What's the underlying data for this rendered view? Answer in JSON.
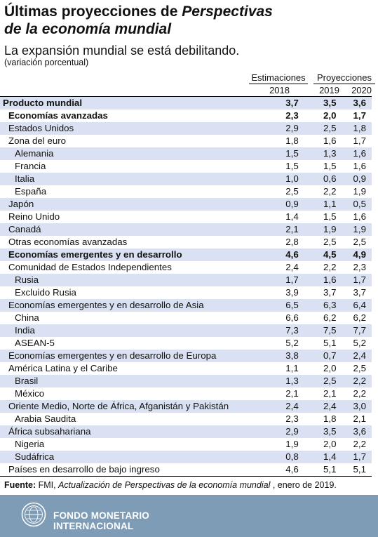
{
  "title": {
    "line1": "Últimas proyecciones de ",
    "line1_em": "Perspectivas",
    "line2_em": "de la economía mundial"
  },
  "subtitle": "La expansión mundial se está debilitando.",
  "unit": "(variación porcentual)",
  "headers": {
    "estimaciones": "Estimaciones",
    "proyecciones": "Proyecciones",
    "y2018": "2018",
    "y2019": "2019",
    "y2020": "2020"
  },
  "rows": [
    {
      "label": "Producto mundial",
      "v2018": "3,7",
      "v2019": "3,5",
      "v2020": "3,6"
    },
    {
      "label": "Economías avanzadas",
      "v2018": "2,3",
      "v2019": "2,0",
      "v2020": "1,7"
    },
    {
      "label": "Estados Unidos",
      "v2018": "2,9",
      "v2019": "2,5",
      "v2020": "1,8"
    },
    {
      "label": "Zona del euro",
      "v2018": "1,8",
      "v2019": "1,6",
      "v2020": "1,7"
    },
    {
      "label": "Alemania",
      "v2018": "1,5",
      "v2019": "1,3",
      "v2020": "1,6"
    },
    {
      "label": "Francia",
      "v2018": "1,5",
      "v2019": "1,5",
      "v2020": "1,6"
    },
    {
      "label": "Italia",
      "v2018": "1,0",
      "v2019": "0,6",
      "v2020": "0,9"
    },
    {
      "label": "España",
      "v2018": "2,5",
      "v2019": "2,2",
      "v2020": "1,9"
    },
    {
      "label": "Japón",
      "v2018": "0,9",
      "v2019": "1,1",
      "v2020": "0,5"
    },
    {
      "label": "Reino Unido",
      "v2018": "1,4",
      "v2019": "1,5",
      "v2020": "1,6"
    },
    {
      "label": "Canadá",
      "v2018": "2,1",
      "v2019": "1,9",
      "v2020": "1,9"
    },
    {
      "label": "Otras economías avanzadas",
      "v2018": "2,8",
      "v2019": "2,5",
      "v2020": "2,5"
    },
    {
      "label": "Economías emergentes y en desarrollo",
      "v2018": "4,6",
      "v2019": "4,5",
      "v2020": "4,9"
    },
    {
      "label": "Comunidad de Estados Independientes",
      "v2018": "2,4",
      "v2019": "2,2",
      "v2020": "2,3"
    },
    {
      "label": "Rusia",
      "v2018": "1,7",
      "v2019": "1,6",
      "v2020": "1,7"
    },
    {
      "label": "Excluido Rusia",
      "v2018": "3,9",
      "v2019": "3,7",
      "v2020": "3,7"
    },
    {
      "label": "Economías emergentes y en desarrollo de Asia",
      "v2018": "6,5",
      "v2019": "6,3",
      "v2020": "6,4"
    },
    {
      "label": "China",
      "v2018": "6,6",
      "v2019": "6,2",
      "v2020": "6,2"
    },
    {
      "label": "India",
      "v2018": "7,3",
      "v2019": "7,5",
      "v2020": "7,7"
    },
    {
      "label": "ASEAN-5",
      "v2018": "5,2",
      "v2019": "5,1",
      "v2020": "5,2"
    },
    {
      "label": "Economías emergentes y en desarrollo de Europa",
      "v2018": "3,8",
      "v2019": "0,7",
      "v2020": "2,4"
    },
    {
      "label": "América Latina y el Caribe",
      "v2018": "1,1",
      "v2019": "2,0",
      "v2020": "2,5"
    },
    {
      "label": "Brasil",
      "v2018": "1,3",
      "v2019": "2,5",
      "v2020": "2,2"
    },
    {
      "label": "México",
      "v2018": "2,1",
      "v2019": "2,1",
      "v2020": "2,2"
    },
    {
      "label": "Oriente Medio, Norte de África, Afganistán y Pakistán",
      "v2018": "2,4",
      "v2019": "2,4",
      "v2020": "3,0"
    },
    {
      "label": "Arabia Saudita",
      "v2018": "2,3",
      "v2019": "1,8",
      "v2020": "2,1"
    },
    {
      "label": "África subsahariana",
      "v2018": "2,9",
      "v2019": "3,5",
      "v2020": "3,6"
    },
    {
      "label": "Nigeria",
      "v2018": "1,9",
      "v2019": "2,0",
      "v2020": "2,2"
    },
    {
      "label": "Sudáfrica",
      "v2018": "0,8",
      "v2019": "1,4",
      "v2020": "1,7"
    },
    {
      "label": "Países en desarrollo de bajo ingreso",
      "v2018": "4,6",
      "v2019": "5,1",
      "v2020": "5,1"
    }
  ],
  "source": {
    "label": "Fuente:",
    "org": " FMI, ",
    "publication": "Actualización de Perspectivas de la economía mundial",
    "date": " , enero de 2019."
  },
  "footer": {
    "line1": "FONDO MONETARIO",
    "line2": "INTERNACIONAL",
    "logo_icon": "imf-seal-icon"
  },
  "colors": {
    "row_shade": "#d9e1f2",
    "footer_bg": "#7e9cb6",
    "footer_text": "#ffffff"
  }
}
